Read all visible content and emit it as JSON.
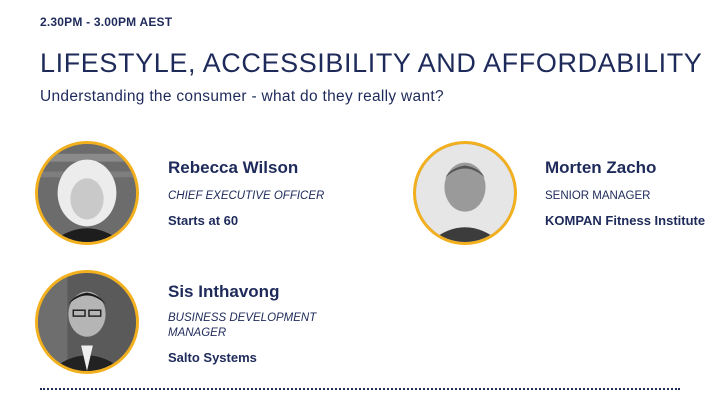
{
  "session": {
    "time": "2.30PM - 3.00PM AEST",
    "title": "LIFESTYLE, ACCESSIBILITY AND AFFORDABILITY",
    "subtitle": "Understanding the consumer - what do they really want?"
  },
  "speakers": [
    {
      "name": "Rebecca Wilson",
      "role": "CHIEF EXECUTIVE OFFICER",
      "organization": "Starts at 60"
    },
    {
      "name": "Morten Zacho",
      "role": "SENIOR MANAGER",
      "organization": "KOMPAN Fitness Institute"
    },
    {
      "name": "Sis Inthavong",
      "role": "BUSINESS DEVELOPMENT MANAGER",
      "organization": "Salto Systems"
    }
  ],
  "colors": {
    "accent": "#f2b01e",
    "text": "#1e2a5a",
    "background": "#ffffff"
  }
}
